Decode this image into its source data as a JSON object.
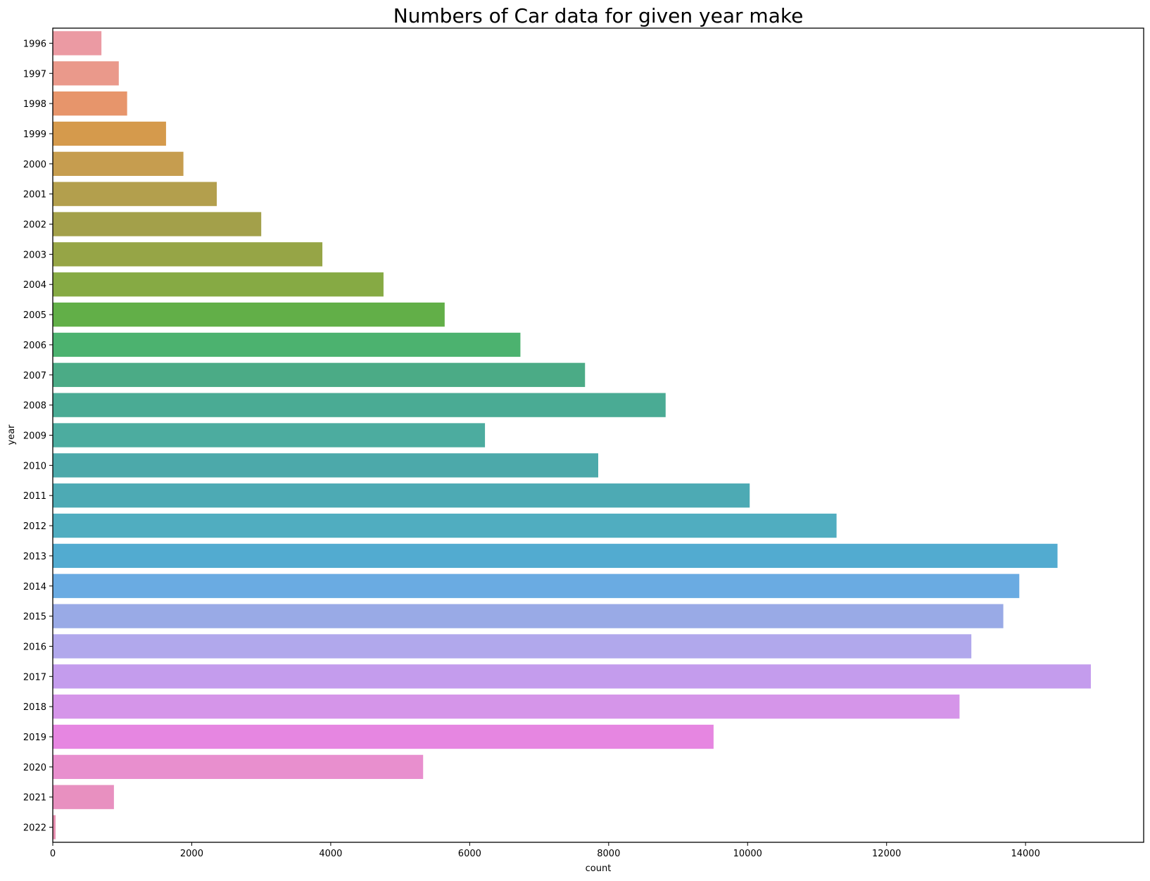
{
  "chart_data": {
    "type": "bar",
    "orientation": "horizontal",
    "title": "Numbers of Car data for given year make",
    "xlabel": "count",
    "ylabel": "year",
    "xlim": [
      0,
      15700
    ],
    "xticks": [
      0,
      2000,
      4000,
      6000,
      8000,
      10000,
      12000,
      14000
    ],
    "grid": false,
    "categories": [
      "1996",
      "1997",
      "1998",
      "1999",
      "2000",
      "2001",
      "2002",
      "2003",
      "2004",
      "2005",
      "2006",
      "2007",
      "2008",
      "2009",
      "2010",
      "2011",
      "2012",
      "2013",
      "2014",
      "2015",
      "2016",
      "2017",
      "2018",
      "2019",
      "2020",
      "2021",
      "2022"
    ],
    "values": [
      700,
      950,
      1070,
      1630,
      1880,
      2360,
      3000,
      3880,
      4760,
      5640,
      6730,
      7660,
      8820,
      6220,
      7850,
      10030,
      11280,
      14460,
      13910,
      13680,
      13220,
      14940,
      13050,
      9510,
      5330,
      880,
      40
    ],
    "colors": [
      "#eb9aa3",
      "#ea998b",
      "#e7956b",
      "#d59a4c",
      "#c69d4f",
      "#b39f4d",
      "#a3a04a",
      "#96a546",
      "#86aa44",
      "#62af48",
      "#4cb26f",
      "#4bab86",
      "#4aab94",
      "#4cac9f",
      "#4ca9aa",
      "#4daab4",
      "#50adc0",
      "#52abd0",
      "#6aabe2",
      "#99aae6",
      "#b1a8ec",
      "#c49ced",
      "#d595e9",
      "#e686e1",
      "#e88fce",
      "#e890c0",
      "#e88fb0"
    ]
  }
}
